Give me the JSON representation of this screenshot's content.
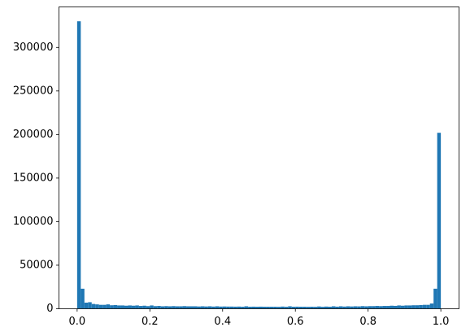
{
  "chart_data": {
    "type": "histogram",
    "color": "#1f77b4",
    "bins": [
      0,
      0.01,
      0.02,
      0.03,
      0.04,
      0.05,
      0.06,
      0.07,
      0.08,
      0.09,
      0.1,
      0.11,
      0.12,
      0.13,
      0.14,
      0.15,
      0.16,
      0.17,
      0.18,
      0.19,
      0.2,
      0.21,
      0.22,
      0.23,
      0.24,
      0.25,
      0.26,
      0.27,
      0.28,
      0.29,
      0.3,
      0.31,
      0.32,
      0.33,
      0.34,
      0.35,
      0.36,
      0.37,
      0.38,
      0.39,
      0.4,
      0.41,
      0.42,
      0.43,
      0.44,
      0.45,
      0.46,
      0.47,
      0.48,
      0.49,
      0.5,
      0.51,
      0.52,
      0.53,
      0.54,
      0.55,
      0.56,
      0.57,
      0.58,
      0.59,
      0.6,
      0.61,
      0.62,
      0.63,
      0.64,
      0.65,
      0.66,
      0.67,
      0.68,
      0.69,
      0.7,
      0.71,
      0.72,
      0.73,
      0.74,
      0.75,
      0.76,
      0.77,
      0.78,
      0.79,
      0.8,
      0.81,
      0.82,
      0.83,
      0.84,
      0.85,
      0.86,
      0.87,
      0.88,
      0.89,
      0.9,
      0.91,
      0.92,
      0.93,
      0.94,
      0.95,
      0.96,
      0.97,
      0.98,
      0.99,
      1
    ],
    "values": [
      330000,
      23000,
      7000,
      7500,
      5500,
      5000,
      4500,
      4500,
      5000,
      4000,
      4200,
      3800,
      3800,
      3500,
      3800,
      3500,
      3800,
      3200,
      3500,
      3000,
      3800,
      3000,
      3200,
      2800,
      3000,
      2800,
      3000,
      2800,
      2800,
      3000,
      2800,
      2800,
      2800,
      2600,
      2800,
      2600,
      2800,
      2500,
      2800,
      2500,
      2600,
      2500,
      2500,
      2400,
      2500,
      2300,
      2800,
      2300,
      2400,
      2300,
      2400,
      2300,
      2300,
      2300,
      2300,
      2200,
      2500,
      2200,
      2800,
      2300,
      2400,
      2300,
      2300,
      2200,
      2300,
      2200,
      2600,
      2200,
      2500,
      2300,
      2800,
      2400,
      2800,
      2500,
      2800,
      2600,
      2800,
      2700,
      3000,
      2800,
      3000,
      3000,
      3200,
      3000,
      3200,
      3200,
      3500,
      3300,
      3800,
      3500,
      3800,
      3800,
      4000,
      4000,
      4200,
      4500,
      4500,
      6000,
      23000,
      202000
    ],
    "xlim": [
      -0.05,
      1.05
    ],
    "xticks": [
      {
        "value": 0,
        "label": "0.0"
      },
      {
        "value": 0.2,
        "label": "0.2"
      },
      {
        "value": 0.4,
        "label": "0.4"
      },
      {
        "value": 0.6,
        "label": "0.6"
      },
      {
        "value": 0.8,
        "label": "0.8"
      },
      {
        "value": 1,
        "label": "1.0"
      }
    ],
    "ylim": [
      0,
      346500
    ],
    "yticks": [
      0,
      50000,
      100000,
      150000,
      200000,
      250000,
      300000
    ]
  }
}
